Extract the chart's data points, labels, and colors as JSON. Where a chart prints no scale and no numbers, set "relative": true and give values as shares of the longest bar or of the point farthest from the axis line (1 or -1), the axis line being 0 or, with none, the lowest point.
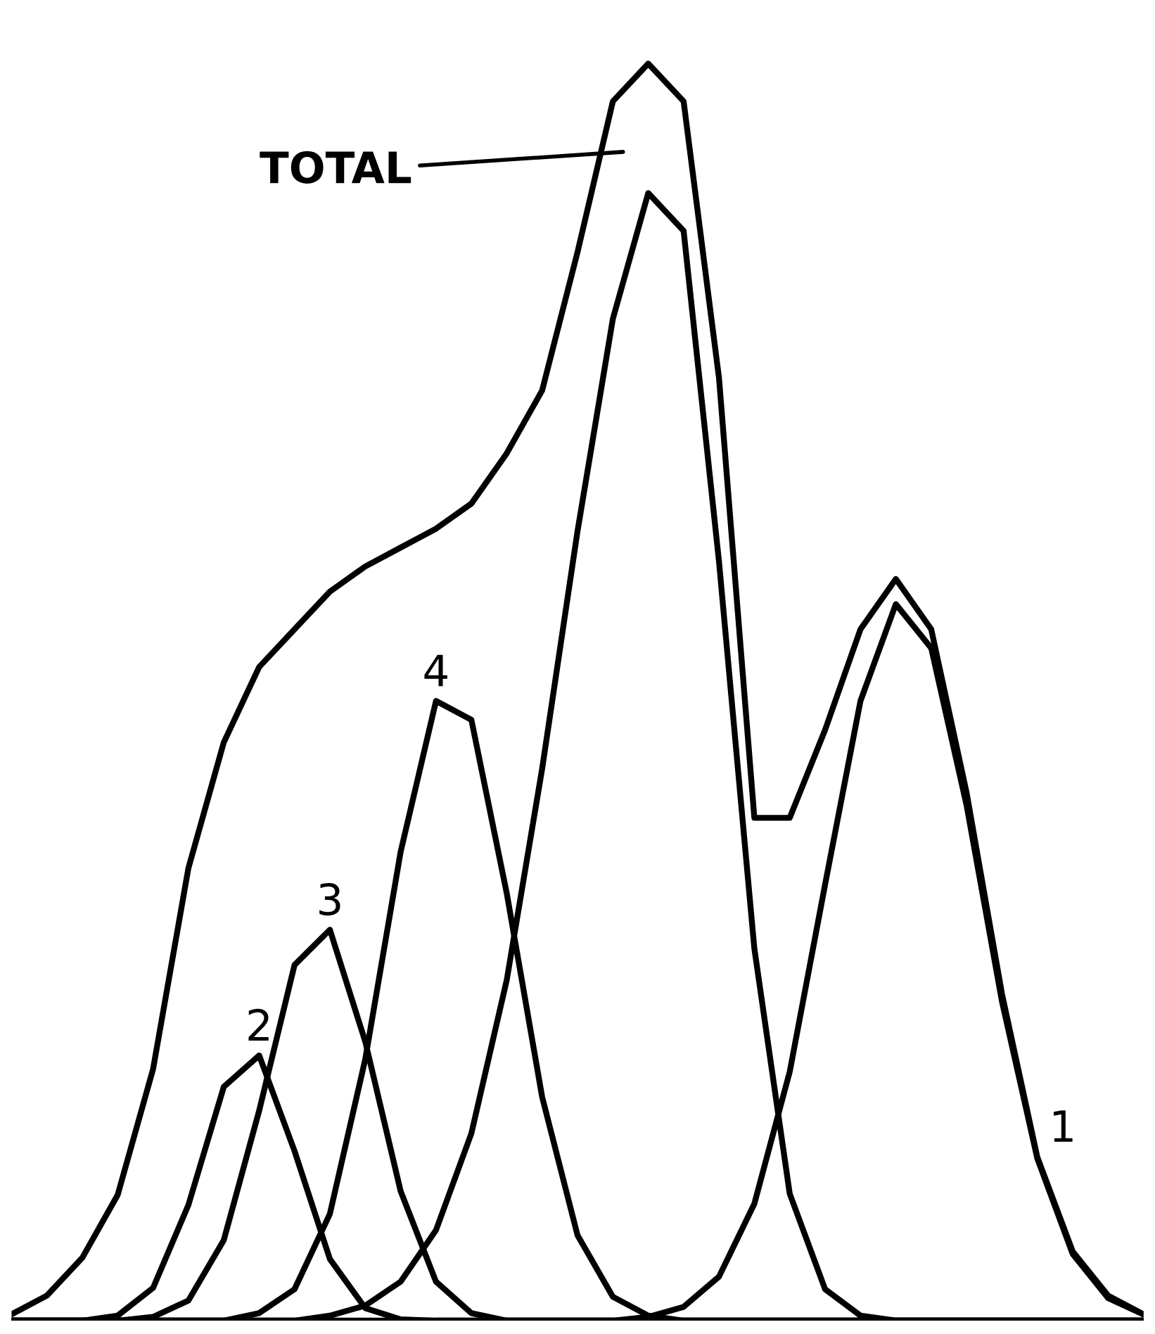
{
  "chart_data": {
    "type": "line",
    "relative": true,
    "marker": "none",
    "line_style": "solid",
    "categories": [
      null,
      null,
      null,
      null,
      null,
      null,
      null,
      null,
      null,
      null,
      null,
      null,
      null,
      null,
      null,
      null,
      null,
      null,
      null,
      null,
      null,
      null,
      null,
      null,
      null,
      null,
      null,
      null,
      null,
      null,
      null,
      null,
      null
    ],
    "series": [
      {
        "name": "TOTAL",
        "color": "#000000",
        "values": [
          0.005,
          0.02,
          0.05,
          0.1,
          0.2,
          0.36,
          0.46,
          0.52,
          0.55,
          0.58,
          0.6,
          0.615,
          0.63,
          0.65,
          0.69,
          0.74,
          0.85,
          0.97,
          1.0,
          0.97,
          0.75,
          0.4,
          0.4,
          0.47,
          0.55,
          0.59,
          0.55,
          0.42,
          0.26,
          0.13,
          0.055,
          0.02,
          0.005
        ]
      },
      {
        "name": "2",
        "color": "#000000",
        "values": [
          0,
          0,
          0,
          0.004,
          0.026,
          0.092,
          0.186,
          0.211,
          0.135,
          0.049,
          0.01,
          0.001,
          0,
          0,
          0,
          0,
          0,
          0,
          0,
          0,
          0,
          0,
          0,
          0,
          0,
          0,
          0,
          0,
          0,
          0,
          0,
          0,
          0
        ]
      },
      {
        "name": "3",
        "color": "#000000",
        "values": [
          0,
          0,
          0,
          0,
          0.003,
          0.016,
          0.064,
          0.167,
          0.283,
          0.311,
          0.222,
          0.103,
          0.031,
          0.006,
          0,
          0,
          0,
          0,
          0,
          0,
          0,
          0,
          0,
          0,
          0,
          0,
          0,
          0,
          0,
          0,
          0,
          0,
          0
        ]
      },
      {
        "name": "4",
        "color": "#000000",
        "values": [
          0,
          0,
          0,
          0,
          0,
          0,
          0,
          0.006,
          0.025,
          0.085,
          0.208,
          0.373,
          0.493,
          0.478,
          0.34,
          0.178,
          0.068,
          0.019,
          0.004,
          0,
          0,
          0,
          0,
          0,
          0,
          0,
          0,
          0,
          0,
          0,
          0,
          0,
          0
        ]
      },
      {
        "color": "#000000",
        "values": [
          0,
          0,
          0,
          0,
          0,
          0,
          0,
          0,
          0,
          0.004,
          0.012,
          0.031,
          0.072,
          0.149,
          0.271,
          0.439,
          0.628,
          0.797,
          0.897,
          0.867,
          0.604,
          0.296,
          0.101,
          0.025,
          0.004,
          0,
          0,
          0,
          0,
          0,
          0,
          0,
          0
        ]
      },
      {
        "name": "1",
        "color": "#000000",
        "values": [
          0,
          0,
          0,
          0,
          0,
          0,
          0,
          0,
          0,
          0,
          0,
          0,
          0,
          0,
          0,
          0,
          0,
          0,
          0.003,
          0.011,
          0.035,
          0.093,
          0.198,
          0.347,
          0.493,
          0.57,
          0.535,
          0.41,
          0.254,
          0.129,
          0.053,
          0.018,
          0.005
        ]
      }
    ]
  }
}
